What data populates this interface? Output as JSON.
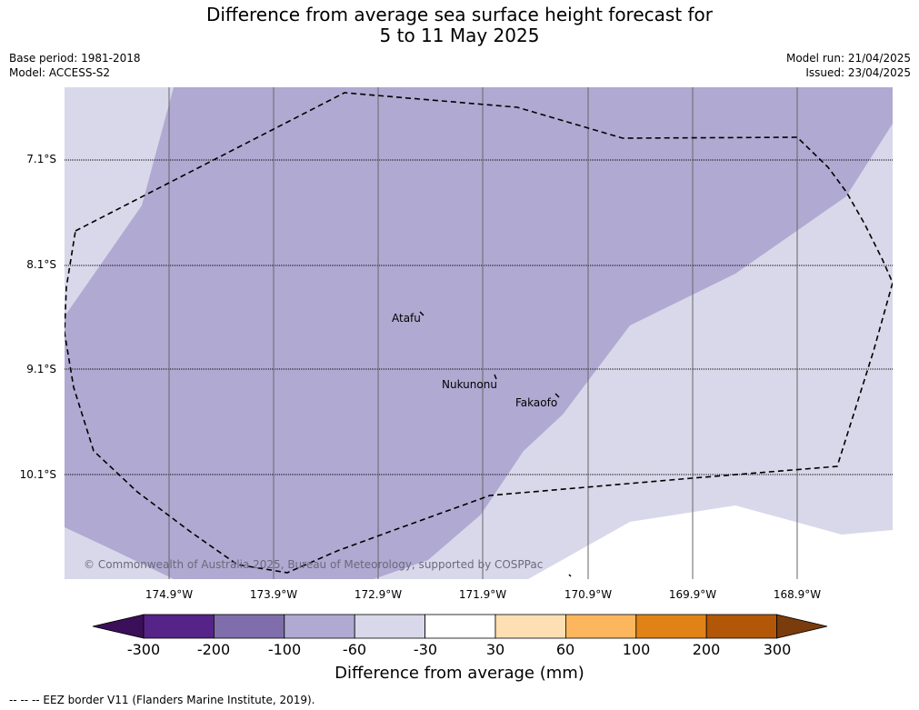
{
  "title": {
    "line1": "Difference from average sea surface height forecast for",
    "line2": "5 to 11 May 2025"
  },
  "meta": {
    "base_period": "Base period: 1981-2018",
    "model": "Model: ACCESS-S2",
    "model_run": "Model run: 21/04/2025",
    "issued": "Issued: 23/04/2025"
  },
  "map": {
    "latitude_labels": [
      "7.1°S",
      "8.1°S",
      "9.1°S",
      "10.1°S"
    ],
    "longitude_labels": [
      "174.9°W",
      "173.9°W",
      "172.9°W",
      "171.9°W",
      "170.9°W",
      "169.9°W",
      "168.9°W"
    ],
    "places": [
      "Atafu",
      "Nukunonu",
      "Fakaofo"
    ],
    "copyright": "© Commonwealth of Australia 2025, Bureau of Meteorology, supported by COSPPac",
    "fill_colors": {
      "-100 to -60": "#b0a9d2",
      "-60 to -30": "#d8d8ea",
      "-30 to 30": "#ffffff"
    }
  },
  "colorbar": {
    "ticks": [
      "-300",
      "-200",
      "-100",
      "-60",
      "-30",
      "30",
      "60",
      "100",
      "200",
      "300"
    ],
    "colors": [
      "#3b0f59",
      "#562389",
      "#7f6eab",
      "#b0a9d2",
      "#d8d8ea",
      "#ffffff",
      "#fedfb4",
      "#fcb65d",
      "#e08216",
      "#b25707",
      "#7a3c0c"
    ],
    "title": "Difference from average (mm)"
  },
  "footnote": "--  --  -- EEZ border V11 (Flanders Marine Institute, 2019)."
}
